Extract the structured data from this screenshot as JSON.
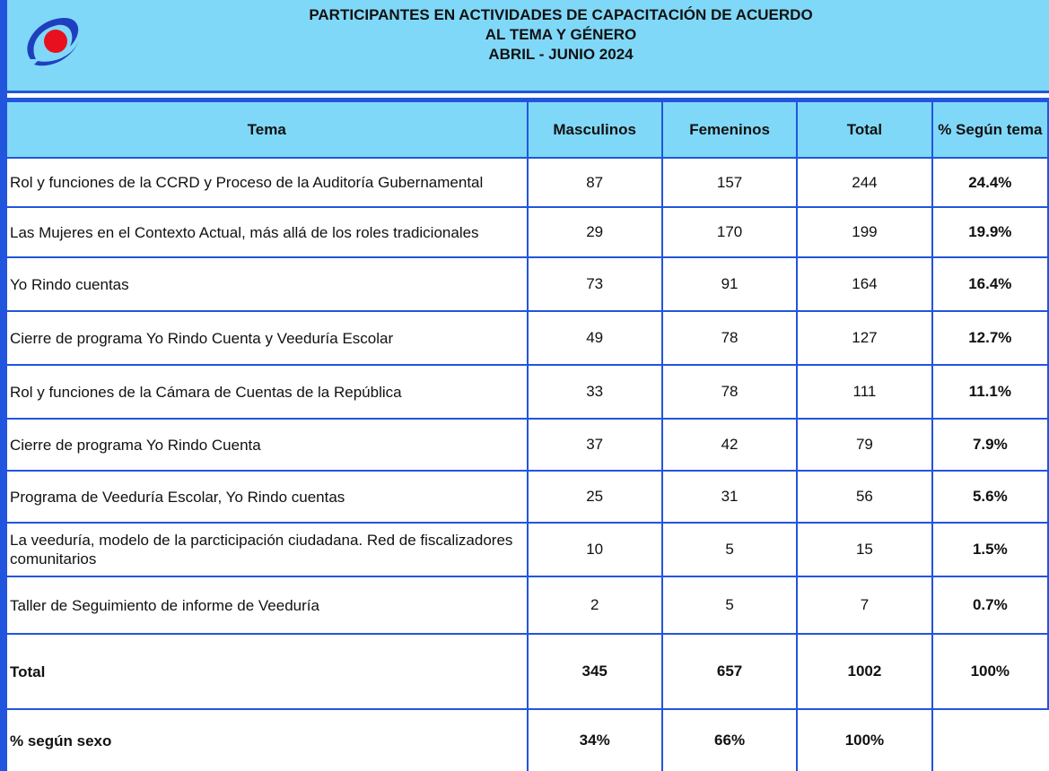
{
  "header": {
    "title_lines": [
      "PARTICIPANTES EN ACTIVIDADES DE CAPACITACIÓN DE ACUERDO",
      "AL TEMA Y GÉNERO",
      "ABRIL - JUNIO 2024"
    ]
  },
  "table": {
    "columns": [
      "Tema",
      "Masculinos",
      "Femeninos",
      "Total",
      "% Según tema"
    ],
    "rows": [
      [
        "Rol y funciones de la CCRD y Proceso de la Auditoría Gubernamental",
        87,
        157,
        244,
        "24.4%"
      ],
      [
        "Las Mujeres en el Contexto Actual, más allá de los roles tradicionales",
        29,
        170,
        199,
        "19.9%"
      ],
      [
        "Yo Rindo cuentas",
        73,
        91,
        164,
        "16.4%"
      ],
      [
        "Cierre de programa Yo Rindo Cuenta y Veeduría Escolar",
        49,
        78,
        127,
        "12.7%"
      ],
      [
        "Rol y funciones de la Cámara de Cuentas de la República",
        33,
        78,
        111,
        "11.1%"
      ],
      [
        "Cierre de programa Yo Rindo Cuenta",
        37,
        42,
        79,
        "7.9%"
      ],
      [
        "Programa  de Veeduría Escolar, Yo Rindo cuentas",
        25,
        31,
        56,
        "5.6%"
      ],
      [
        "La veeduría, modelo de la parcticipación ciudadana. Red de fiscalizadores comunitarios",
        10,
        5,
        15,
        "1.5%"
      ],
      [
        "Taller de Seguimiento de informe de Veeduría",
        2,
        5,
        7,
        "0.7%"
      ]
    ],
    "total": [
      "Total",
      345,
      657,
      1002,
      "100%"
    ],
    "by_sex": [
      "%  según sexo",
      "34%",
      "66%",
      "100%"
    ]
  }
}
